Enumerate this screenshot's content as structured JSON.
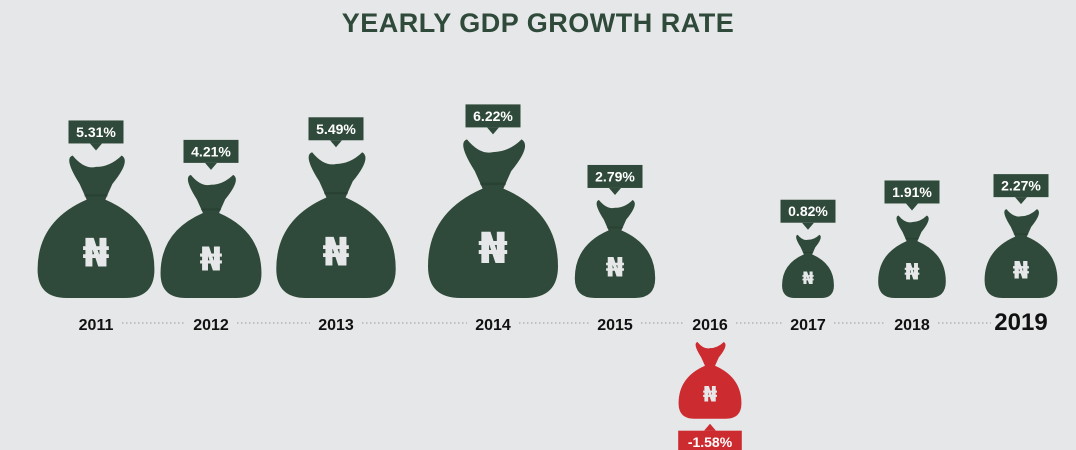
{
  "title": "YEARLY GDP GROWTH RATE",
  "colors": {
    "positive": "#2f4a3a",
    "negative": "#cc2b30",
    "background": "#e6e7e8",
    "text": "#111111"
  },
  "icon": "money-bag-naira-icon",
  "chart_data": {
    "type": "bar",
    "title": "YEARLY GDP GROWTH RATE",
    "categories": [
      "2011",
      "2012",
      "2013",
      "2014",
      "2015",
      "2016",
      "2017",
      "2018",
      "2019"
    ],
    "values": [
      5.31,
      4.21,
      5.49,
      6.22,
      2.79,
      -1.58,
      0.82,
      1.91,
      2.27
    ],
    "value_labels": [
      "5.31%",
      "4.21%",
      "5.49%",
      "6.22%",
      "2.79%",
      "-1.58%",
      "0.82%",
      "1.91%",
      "2.27%"
    ],
    "highlight_category": "2019",
    "grid": false
  }
}
